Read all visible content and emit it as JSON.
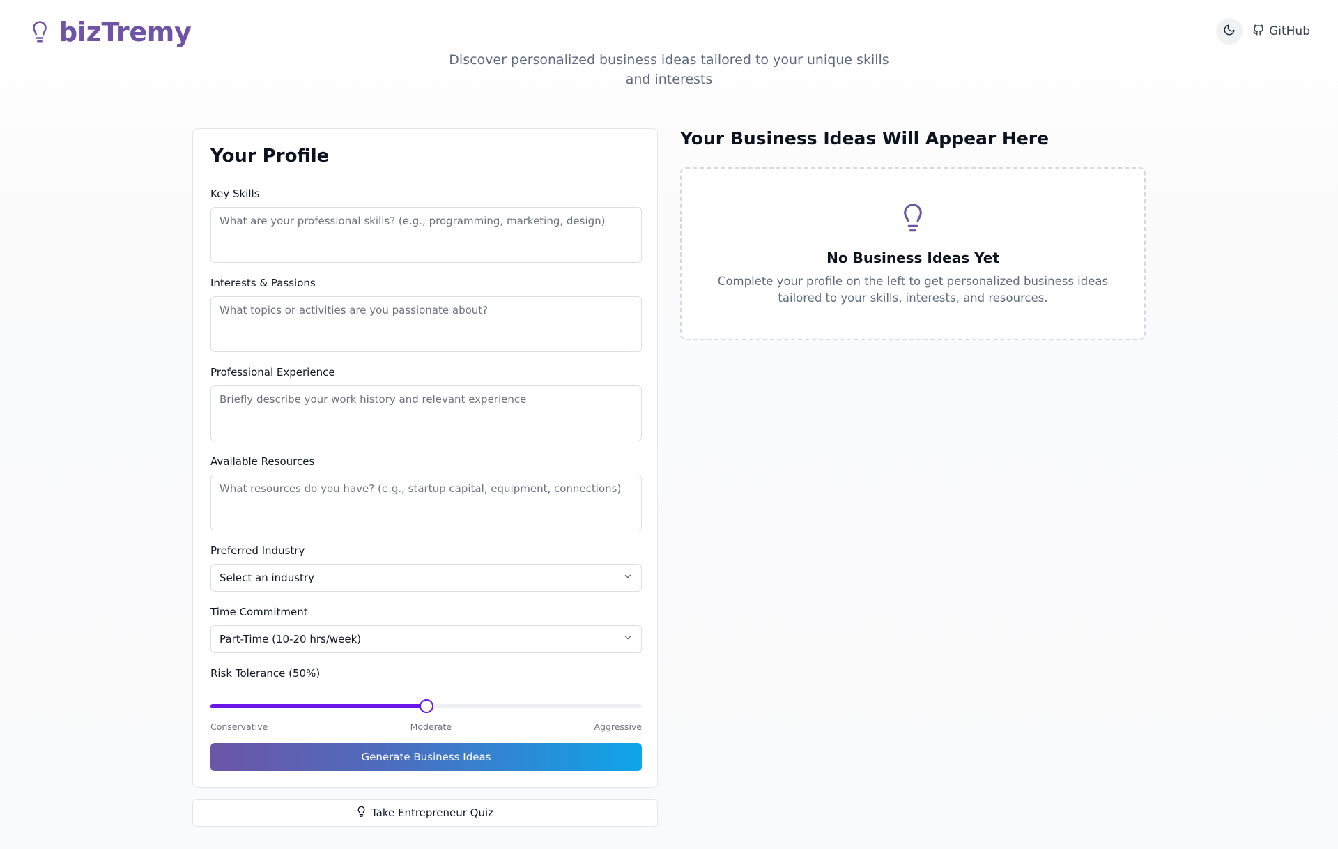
{
  "header": {
    "brand_name": "bizTremy",
    "brand_icon": "lightbulb-icon",
    "theme_toggle_icon": "moon-icon",
    "github_label": "GitHub",
    "github_icon": "github-icon",
    "tagline": "Discover personalized business ideas tailored to your unique skills and interests",
    "brand_color": "#6f54a6"
  },
  "profile": {
    "title": "Your Profile",
    "key_skills": {
      "label": "Key Skills",
      "value": "",
      "placeholder": "What are your professional skills? (e.g., programming, marketing, design)"
    },
    "interests": {
      "label": "Interests & Passions",
      "value": "",
      "placeholder": "What topics or activities are you passionate about?"
    },
    "experience": {
      "label": "Professional Experience",
      "value": "",
      "placeholder": "Briefly describe your work history and relevant experience"
    },
    "resources": {
      "label": "Available Resources",
      "value": "",
      "placeholder": "What resources do you have? (e.g., startup capital, equipment, connections)"
    },
    "industry": {
      "label": "Preferred Industry",
      "selected": "Select an industry"
    },
    "time_commitment": {
      "label": "Time Commitment",
      "selected": "Part-Time (10-20 hrs/week)"
    },
    "risk_tolerance": {
      "label": "Risk Tolerance (50%)",
      "value_percent": 50,
      "min_label": "Conservative",
      "mid_label": "Moderate",
      "max_label": "Aggressive",
      "accent_color": "#6a16e8"
    },
    "generate_button": "Generate Business Ideas"
  },
  "quiz_button": {
    "label": "Take Entrepreneur Quiz",
    "icon": "lightbulb-icon"
  },
  "ideas": {
    "title": "Your Business Ideas Will Appear Here",
    "empty_icon": "lightbulb-icon",
    "empty_title": "No Business Ideas Yet",
    "empty_text": "Complete your profile on the left to get personalized business ideas tailored to your skills, interests, and resources."
  }
}
